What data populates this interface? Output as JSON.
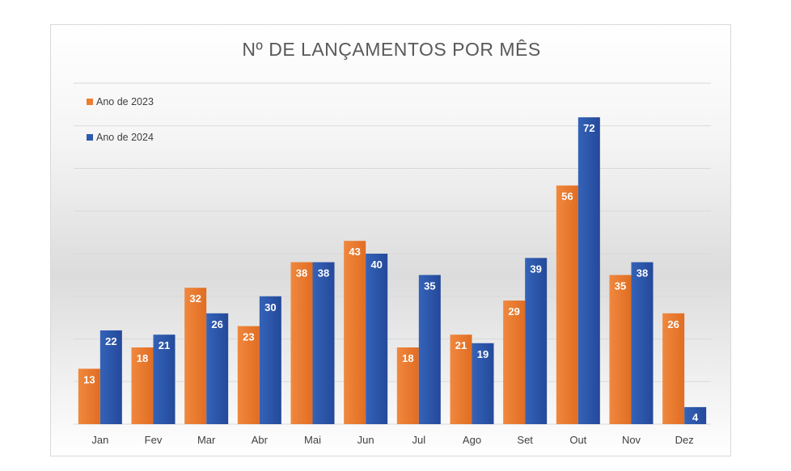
{
  "chart_data": {
    "type": "bar",
    "title": "Nº DE LANÇAMENTOS POR MÊS",
    "xlabel": "",
    "ylabel": "",
    "ylim": [
      0,
      80
    ],
    "grid": true,
    "legend_position": "top-left",
    "categories": [
      "Jan",
      "Fev",
      "Mar",
      "Abr",
      "Mai",
      "Jun",
      "Jul",
      "Ago",
      "Set",
      "Out",
      "Nov",
      "Dez"
    ],
    "series": [
      {
        "name": "Ano de 2023",
        "color": "#ED7D31",
        "color_dark": "#D8611A",
        "values": [
          13,
          18,
          32,
          23,
          38,
          43,
          18,
          21,
          29,
          56,
          35,
          26
        ]
      },
      {
        "name": "Ano de 2024",
        "color": "#2E5AAC",
        "color_dark": "#1F4690",
        "values": [
          22,
          21,
          26,
          30,
          38,
          40,
          35,
          19,
          39,
          72,
          38,
          4
        ]
      }
    ]
  }
}
